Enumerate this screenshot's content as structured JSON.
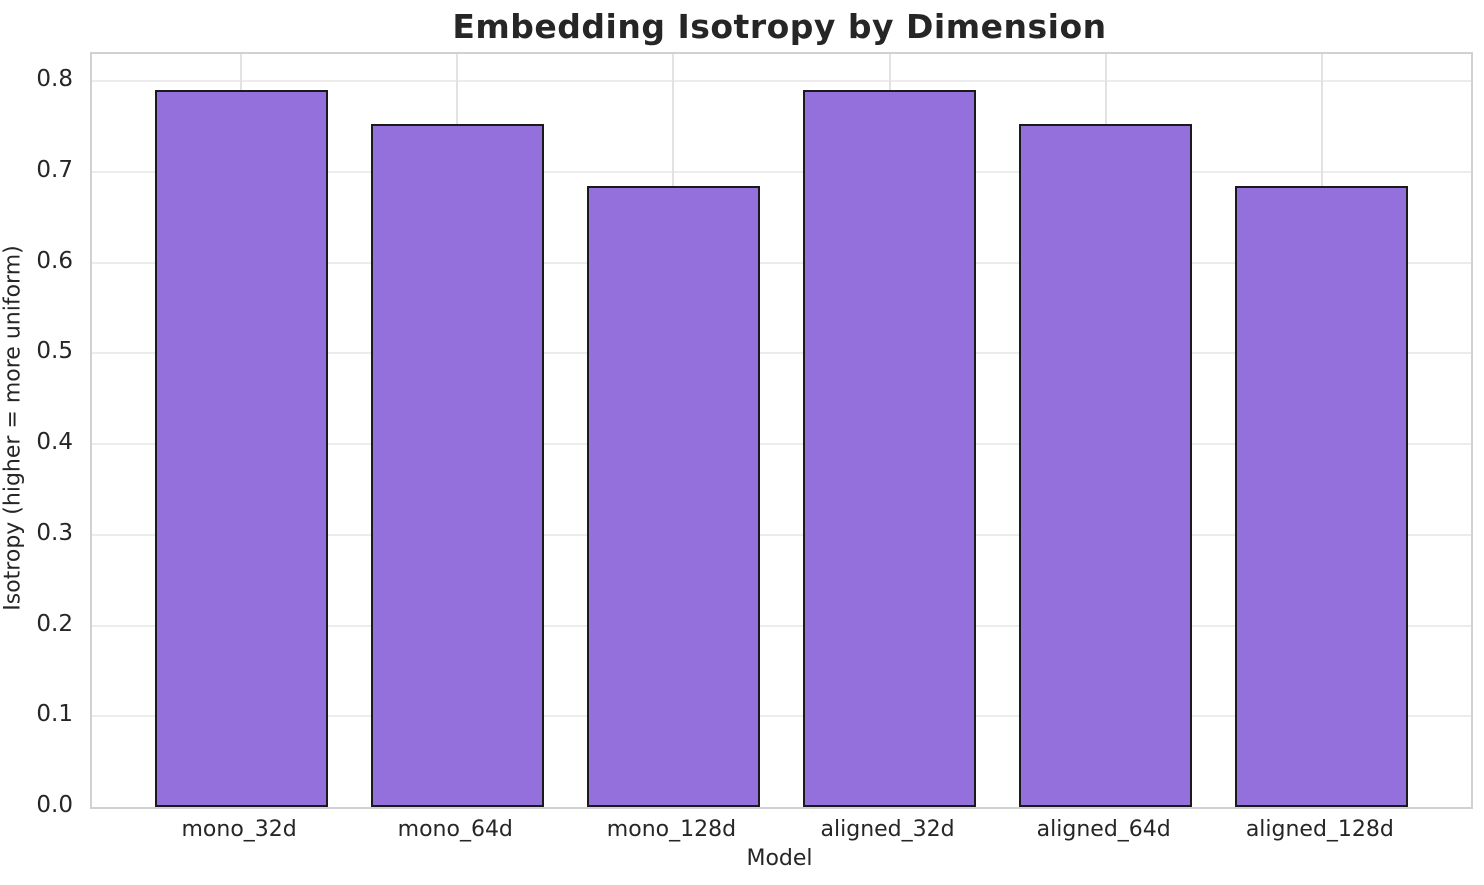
{
  "chart_data": {
    "type": "bar",
    "title": "Embedding Isotropy by Dimension",
    "xlabel": "Model",
    "ylabel": "Isotropy (higher = more uniform)",
    "categories": [
      "mono_32d",
      "mono_64d",
      "mono_128d",
      "aligned_32d",
      "aligned_64d",
      "aligned_128d"
    ],
    "values": [
      0.79,
      0.753,
      0.684,
      0.79,
      0.753,
      0.684
    ],
    "ylim": [
      0,
      0.83
    ],
    "yticks": [
      "0.0",
      "0.1",
      "0.2",
      "0.3",
      "0.4",
      "0.5",
      "0.6",
      "0.7",
      "0.8"
    ],
    "grid": "both",
    "legend_position": "none",
    "colors": {
      "bar_fill": "#9370DB",
      "bar_edge": "#1a1a1a",
      "grid_horizontal": "#ececec",
      "grid_vertical": "#e2e2e2",
      "spine": "#d1d1d1",
      "text": "#262626",
      "background": "#ffffff"
    }
  }
}
